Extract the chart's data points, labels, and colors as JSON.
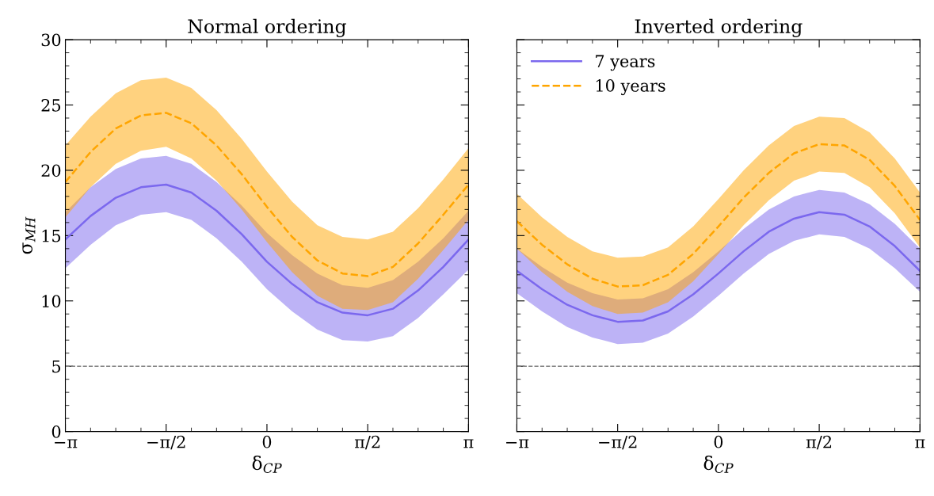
{
  "chart_data": [
    {
      "type": "line",
      "title": "Normal ordering",
      "xlabel": "δ$_{CP}$",
      "ylabel": "σ$_{MH}$",
      "x": [
        -3.1416,
        -2.7489,
        -2.3562,
        -1.9635,
        -1.5708,
        -1.1781,
        -0.7854,
        -0.3927,
        0,
        0.3927,
        0.7854,
        1.1781,
        1.5708,
        1.9635,
        2.3562,
        2.7489,
        3.1416
      ],
      "series": [
        {
          "color": "#7b68ee",
          "line_style": "solid",
          "values": [
            14.7,
            16.5,
            17.9,
            18.7,
            18.9,
            18.3,
            16.9,
            15.1,
            13.0,
            11.3,
            9.9,
            9.1,
            8.9,
            9.4,
            10.8,
            12.6,
            14.7
          ],
          "lower": [
            12.5,
            14.3,
            15.8,
            16.6,
            16.8,
            16.2,
            14.8,
            13.0,
            10.9,
            9.2,
            7.8,
            7.0,
            6.9,
            7.3,
            8.7,
            10.5,
            12.4
          ],
          "upper": [
            16.8,
            18.7,
            20.1,
            20.9,
            21.1,
            20.5,
            19.1,
            17.3,
            15.2,
            13.5,
            12.1,
            11.2,
            11.0,
            11.6,
            13.0,
            14.8,
            16.9
          ]
        },
        {
          "color": "#ffa500",
          "line_style": "dashed",
          "values": [
            19.1,
            21.4,
            23.2,
            24.2,
            24.4,
            23.6,
            21.9,
            19.7,
            17.2,
            14.9,
            13.1,
            12.1,
            11.9,
            12.6,
            14.4,
            16.6,
            18.9
          ],
          "lower": [
            16.4,
            18.7,
            20.5,
            21.5,
            21.8,
            20.9,
            19.2,
            17.0,
            14.5,
            12.2,
            10.4,
            9.4,
            9.3,
            9.9,
            11.7,
            13.9,
            16.2
          ],
          "upper": [
            21.9,
            24.1,
            25.9,
            26.9,
            27.1,
            26.3,
            24.6,
            22.4,
            19.9,
            17.6,
            15.8,
            14.9,
            14.7,
            15.3,
            17.1,
            19.3,
            21.7
          ]
        }
      ],
      "xlim": [
        -3.1416,
        3.1416
      ],
      "xticks": [
        {
          "value": -3.1416,
          "label": "−π"
        },
        {
          "value": -1.5708,
          "label": "−π/2"
        },
        {
          "value": 0,
          "label": "0"
        },
        {
          "value": 1.5708,
          "label": "π/2"
        },
        {
          "value": 3.1416,
          "label": "π"
        }
      ],
      "ylim": [
        0,
        30
      ],
      "yticks": [
        0,
        5,
        10,
        15,
        20,
        25,
        30
      ],
      "ref_lines": [
        {
          "axis": "y",
          "value": 5,
          "color": "#808080",
          "line_style": "dashed"
        }
      ],
      "grid": false,
      "legend": false
    },
    {
      "type": "line",
      "title": "Inverted ordering",
      "xlabel": "δ$_{CP}$",
      "x": [
        -3.1416,
        -2.7489,
        -2.3562,
        -1.9635,
        -1.5708,
        -1.1781,
        -0.7854,
        -0.3927,
        0,
        0.3927,
        0.7854,
        1.1781,
        1.5708,
        1.9635,
        2.3562,
        2.7489,
        3.1416
      ],
      "series": [
        {
          "name": "7 years",
          "color": "#7b68ee",
          "line_style": "solid",
          "values": [
            12.3,
            10.9,
            9.7,
            8.9,
            8.4,
            8.5,
            9.2,
            10.5,
            12.1,
            13.8,
            15.3,
            16.3,
            16.8,
            16.6,
            15.7,
            14.2,
            12.3
          ],
          "lower": [
            10.6,
            9.2,
            8.0,
            7.2,
            6.7,
            6.8,
            7.5,
            8.8,
            10.4,
            12.1,
            13.6,
            14.6,
            15.1,
            14.9,
            14.0,
            12.5,
            10.7
          ],
          "upper": [
            14.0,
            12.6,
            11.4,
            10.6,
            10.1,
            10.2,
            10.9,
            12.2,
            13.8,
            15.5,
            17.0,
            18.0,
            18.5,
            18.3,
            17.4,
            15.9,
            14.0
          ]
        },
        {
          "name": "10 years",
          "color": "#ffa500",
          "line_style": "dashed",
          "values": [
            16.1,
            14.3,
            12.8,
            11.7,
            11.1,
            11.2,
            12.0,
            13.6,
            15.7,
            17.9,
            19.8,
            21.3,
            22.0,
            21.9,
            20.8,
            18.8,
            16.2
          ],
          "lower": [
            14.0,
            12.2,
            10.7,
            9.6,
            9.0,
            9.1,
            9.9,
            11.5,
            13.6,
            15.8,
            17.7,
            19.2,
            19.9,
            19.8,
            18.7,
            16.7,
            14.1
          ],
          "upper": [
            18.2,
            16.4,
            14.9,
            13.8,
            13.3,
            13.4,
            14.1,
            15.7,
            17.8,
            20.0,
            21.9,
            23.4,
            24.1,
            24.0,
            22.9,
            20.9,
            18.3
          ]
        }
      ],
      "xlim": [
        -3.1416,
        3.1416
      ],
      "xticks": [
        {
          "value": -3.1416,
          "label": "−π"
        },
        {
          "value": -1.5708,
          "label": "−π/2"
        },
        {
          "value": 0,
          "label": "0"
        },
        {
          "value": 1.5708,
          "label": "π/2"
        },
        {
          "value": 3.1416,
          "label": "π"
        }
      ],
      "ylim": [
        0,
        30
      ],
      "yticks": [
        0,
        5,
        10,
        15,
        20,
        25,
        30
      ],
      "ref_lines": [
        {
          "axis": "y",
          "value": 5,
          "color": "#808080",
          "line_style": "dashed"
        }
      ],
      "grid": false,
      "legend": "top left",
      "tick_labels": "x"
    }
  ]
}
